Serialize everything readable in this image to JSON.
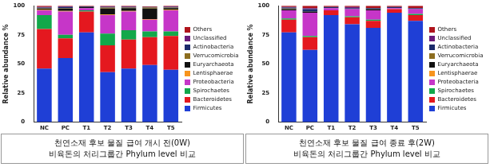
{
  "chart_data": [
    {
      "type": "bar",
      "stacked": true,
      "legend": "right",
      "grid": false,
      "y_label": "Relative abundance %",
      "caption": [
        "천연소재 후보 물질 급여 개시 전(0W)",
        "비육돈의 처리그룹간 Phylum level 비교"
      ],
      "categories": [
        "NC",
        "PC",
        "T1",
        "T2",
        "T3",
        "T4",
        "T5"
      ],
      "ylim": [
        0,
        100
      ],
      "yticks": [
        0,
        25,
        50,
        75,
        100
      ],
      "series": [
        {
          "name": "Firmicutes",
          "color": "#1f3fd6",
          "values": [
            46,
            55,
            77,
            43,
            46,
            49,
            45
          ]
        },
        {
          "name": "Bacteroidetes",
          "color": "#e4181f",
          "values": [
            34,
            17,
            18,
            23,
            25,
            24,
            29
          ]
        },
        {
          "name": "Spirochaetes",
          "color": "#12a84a",
          "values": [
            12,
            3,
            1,
            10,
            8,
            5,
            4
          ]
        },
        {
          "name": "Proteobacteria",
          "color": "#c636c8",
          "values": [
            4,
            20,
            2,
            16,
            16,
            10,
            18
          ]
        },
        {
          "name": "Lentisphaerae",
          "color": "#f7941d",
          "values": [
            0.5,
            0.5,
            0,
            0.5,
            0.5,
            0.5,
            0.5
          ]
        },
        {
          "name": "Euryarchaeota",
          "color": "#111111",
          "values": [
            1,
            2,
            1,
            5,
            2.5,
            9,
            1.5
          ]
        },
        {
          "name": "Verrucomicrobia",
          "color": "#8c6d1f",
          "values": [
            0.5,
            0.5,
            0,
            1,
            0.5,
            1,
            0.5
          ]
        },
        {
          "name": "Actinobacteria",
          "color": "#1b2a6b",
          "values": [
            0.5,
            1,
            0.5,
            0.5,
            0.5,
            0.5,
            0.5
          ]
        },
        {
          "name": "Unclassified",
          "color": "#6a1b7a",
          "values": [
            0.5,
            0.5,
            0,
            0.5,
            0.5,
            0,
            0.5
          ]
        },
        {
          "name": "Others",
          "color": "#b0141c",
          "values": [
            1,
            0.5,
            0.5,
            0.5,
            0.5,
            0.5,
            0.5
          ]
        }
      ]
    },
    {
      "type": "bar",
      "stacked": true,
      "legend": "right",
      "grid": false,
      "y_label": "Relative abundance %",
      "caption": [
        "천연소재 후보 물질 급여 종료 후(2W)",
        "비육돈의 처리그룹간 Phylum level 비교"
      ],
      "categories": [
        "NC",
        "PC",
        "T1",
        "T2",
        "T3",
        "T4",
        "T5"
      ],
      "ylim": [
        0,
        100
      ],
      "yticks": [
        0,
        25,
        50,
        75,
        100
      ],
      "series": [
        {
          "name": "Firmicutes",
          "color": "#1f3fd6",
          "values": [
            77,
            62,
            92,
            84,
            81,
            94,
            87
          ]
        },
        {
          "name": "Bacteroidetes",
          "color": "#e4181f",
          "values": [
            11,
            11,
            4,
            6,
            6,
            3,
            5
          ]
        },
        {
          "name": "Spirochaetes",
          "color": "#12a84a",
          "values": [
            1,
            1,
            0,
            1,
            1,
            0,
            1
          ]
        },
        {
          "name": "Proteobacteria",
          "color": "#c636c8",
          "values": [
            7,
            20,
            2,
            6,
            8,
            1,
            4
          ]
        },
        {
          "name": "Lentisphaerae",
          "color": "#f7941d",
          "values": [
            0,
            0,
            0,
            0,
            0,
            0,
            0
          ]
        },
        {
          "name": "Euryarchaeota",
          "color": "#111111",
          "values": [
            1,
            1,
            0,
            0,
            1,
            0,
            0
          ]
        },
        {
          "name": "Verrucomicrobia",
          "color": "#8c6d1f",
          "values": [
            0.5,
            0,
            0,
            0,
            0,
            0,
            0
          ]
        },
        {
          "name": "Actinobacteria",
          "color": "#1b2a6b",
          "values": [
            1,
            2,
            1,
            1,
            1,
            1,
            1
          ]
        },
        {
          "name": "Unclassified",
          "color": "#6a1b7a",
          "values": [
            0.5,
            1,
            0,
            1,
            0,
            0,
            0
          ]
        },
        {
          "name": "Others",
          "color": "#b0141c",
          "values": [
            1,
            2,
            1,
            1,
            2,
            1,
            2
          ]
        }
      ]
    }
  ]
}
